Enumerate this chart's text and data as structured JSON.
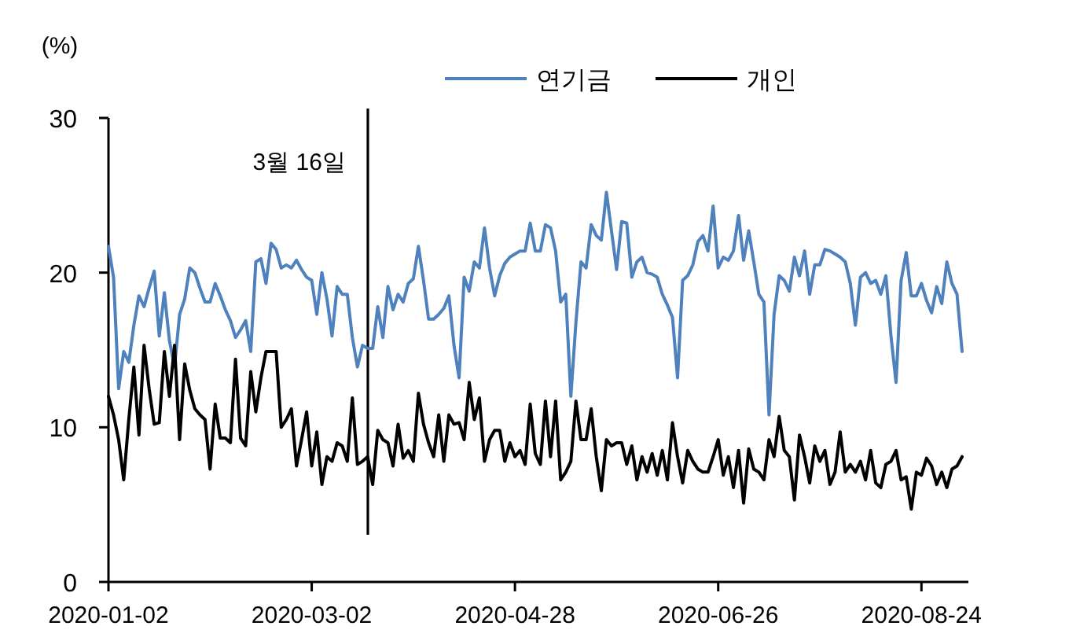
{
  "chart_data": {
    "type": "line",
    "ylabel": "(%)",
    "categories": [
      "2020-01-02",
      null,
      null,
      null,
      null,
      null,
      null,
      null,
      null,
      null,
      null,
      null,
      null,
      null,
      null,
      null,
      null,
      null,
      null,
      null,
      null,
      null,
      null,
      null,
      null,
      null,
      null,
      null,
      null,
      null,
      null,
      null,
      null,
      null,
      null,
      null,
      null,
      null,
      null,
      null,
      "2020-03-02",
      null,
      null,
      null,
      null,
      null,
      null,
      null,
      null,
      null,
      null,
      null,
      null,
      null,
      null,
      null,
      null,
      null,
      null,
      null,
      null,
      null,
      null,
      null,
      null,
      null,
      null,
      null,
      null,
      null,
      null,
      null,
      null,
      null,
      null,
      null,
      null,
      null,
      null,
      null,
      "2020-04-28",
      null,
      null,
      null,
      null,
      null,
      null,
      null,
      null,
      null,
      null,
      null,
      null,
      null,
      null,
      null,
      null,
      null,
      null,
      null,
      null,
      null,
      null,
      null,
      null,
      null,
      null,
      null,
      null,
      null,
      null,
      null,
      null,
      null,
      null,
      null,
      null,
      null,
      null,
      null,
      "2020-06-26",
      null,
      null,
      null,
      null,
      null,
      null,
      null,
      null,
      null,
      null,
      null,
      null,
      null,
      null,
      null,
      null,
      null,
      null,
      null,
      null,
      null,
      null,
      null,
      null,
      null,
      null,
      null,
      null,
      null,
      null,
      null,
      null,
      null,
      null,
      null,
      null,
      null,
      null,
      null,
      "2020-08-24",
      null,
      null,
      null,
      null,
      null,
      null,
      null,
      null
    ],
    "series": [
      {
        "name": "연기금",
        "color": "#4f81bd",
        "values": [
          21.7,
          19.7,
          12.5,
          14.9,
          14.2,
          16.6,
          18.5,
          17.8,
          19,
          20.1,
          15.9,
          18.7,
          15.6,
          13.9,
          17.3,
          18.3,
          20.3,
          20,
          19,
          18.1,
          18.1,
          19.3,
          18.5,
          17.6,
          16.9,
          15.8,
          16.3,
          16.9,
          14.9,
          20.7,
          20.9,
          19.3,
          21.9,
          21.5,
          20.3,
          20.5,
          20.3,
          20.8,
          20.2,
          19.7,
          19.5,
          17.3,
          20,
          18.3,
          15.9,
          19.1,
          18.6,
          18.6,
          15.8,
          13.9,
          15.3,
          15.1,
          15.1,
          17.8,
          15.8,
          19.1,
          17.6,
          18.6,
          18.1,
          19.3,
          19.6,
          21.7,
          19.5,
          17,
          17,
          17.3,
          17.7,
          18.5,
          15.3,
          13.2,
          19.7,
          18.8,
          20.7,
          20.3,
          22.9,
          20.3,
          18.5,
          19.8,
          20.6,
          21,
          21.2,
          21.4,
          21.4,
          23.2,
          21.4,
          21.4,
          23.1,
          22.9,
          21.4,
          18.1,
          18.6,
          12,
          16.8,
          20.7,
          20.3,
          23.1,
          22.4,
          22.1,
          25.2,
          22.7,
          20.2,
          23.3,
          23.2,
          19.7,
          20.7,
          21,
          20,
          19.9,
          19.7,
          18.6,
          17.9,
          17.1,
          13.2,
          19.5,
          19.8,
          20.5,
          22,
          22.4,
          21.4,
          24.3,
          20.3,
          21,
          20.8,
          21.4,
          23.7,
          20.8,
          22.7,
          20.7,
          18.6,
          18.1,
          10.8,
          17.3,
          19.8,
          19.5,
          18.8,
          21,
          19.8,
          21.4,
          18.6,
          20.5,
          20.5,
          21.5,
          21.4,
          21.2,
          21,
          20.7,
          19.3,
          16.6,
          19.7,
          20,
          19.3,
          19.5,
          18.6,
          19.8,
          15.9,
          12.9,
          19.5,
          21.3,
          18.5,
          18.5,
          19.3,
          18.2,
          17.4,
          19.1,
          18,
          20.7,
          19.3,
          18.6,
          14.9
        ]
      },
      {
        "name": "개인",
        "color": "#000000",
        "values": [
          12,
          10.8,
          9.2,
          6.6,
          10.5,
          13.9,
          9.5,
          15.3,
          12.5,
          10.2,
          10.3,
          14.9,
          12,
          15.3,
          9.2,
          14.1,
          12.4,
          11.2,
          10.8,
          10.5,
          7.3,
          11.5,
          9.3,
          9.3,
          9,
          14.4,
          9.3,
          8.8,
          13.6,
          11,
          13.2,
          14.9,
          14.9,
          14.9,
          10,
          10.5,
          11.2,
          7.5,
          9.2,
          11,
          7.5,
          9.7,
          6.3,
          8.1,
          7.8,
          9,
          8.8,
          7.8,
          11.9,
          7.6,
          7.8,
          8.1,
          6.3,
          9.8,
          9.2,
          9,
          7.5,
          10.2,
          8,
          8.5,
          7.8,
          12.2,
          10.2,
          9,
          8.1,
          10.8,
          7.8,
          10.8,
          10.2,
          10.3,
          9.2,
          12.9,
          10.5,
          11.9,
          7.8,
          9.2,
          9.8,
          9.8,
          7.8,
          9,
          8.1,
          8.5,
          7.6,
          11.5,
          8.3,
          7.6,
          11.7,
          8.1,
          11.7,
          6.6,
          7.1,
          7.8,
          11.7,
          9.2,
          9.2,
          11.2,
          8.1,
          5.9,
          9.2,
          8.8,
          9,
          9,
          7.6,
          8.8,
          6.6,
          8.1,
          7.1,
          8.3,
          6.9,
          8.5,
          6.6,
          10.3,
          8.1,
          6.4,
          8.5,
          7.8,
          7.3,
          7.1,
          7.1,
          8.1,
          9.2,
          6.9,
          8.1,
          6.1,
          8.5,
          5.1,
          8.6,
          7.3,
          7.1,
          6.6,
          9.2,
          8.1,
          10.7,
          8.5,
          8.1,
          5.3,
          9.5,
          8.1,
          6.4,
          8.8,
          7.8,
          8.5,
          6.3,
          7.1,
          9.7,
          7.1,
          7.6,
          7.1,
          7.8,
          6.6,
          8.5,
          6.4,
          6.1,
          7.6,
          7.8,
          8.5,
          6.6,
          6.8,
          4.7,
          7.1,
          6.9,
          8,
          7.5,
          6.3,
          7.1,
          6.1,
          7.3,
          7.5,
          8.1
        ]
      }
    ],
    "ylim": [
      0,
      30
    ],
    "yticks": [
      0,
      10,
      20,
      30
    ],
    "annotations": [
      "3월 16일"
    ],
    "legend": "top",
    "grid": false,
    "marker": "none",
    "line_style": "solid"
  }
}
